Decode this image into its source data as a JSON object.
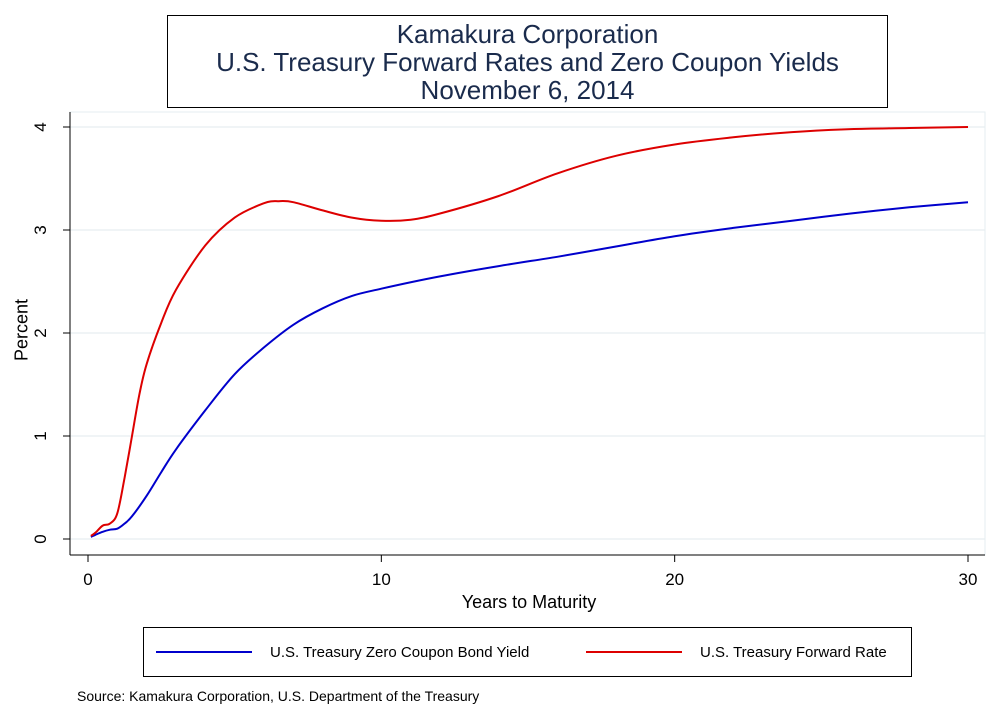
{
  "title": {
    "line1": "Kamakura Corporation",
    "line2": "U.S. Treasury Forward Rates and Zero Coupon Yields",
    "line3": "November 6, 2014"
  },
  "source_note": "Source: Kamakura Corporation, U.S. Department of the Treasury",
  "colors": {
    "zero_yield": "#0000cc",
    "forward_rate": "#dd0000",
    "title_text": "#1a2b4c",
    "grid": "#e6eef0"
  },
  "chart_data": {
    "type": "line",
    "title": "Kamakura Corporation U.S. Treasury Forward Rates and Zero Coupon Yields November 6, 2014",
    "xlabel": "Years to Maturity",
    "ylabel": "Percent",
    "xlim": [
      0,
      30
    ],
    "ylim": [
      0,
      4
    ],
    "xticks": [
      0,
      10,
      20,
      30
    ],
    "yticks": [
      0,
      1,
      2,
      3,
      4
    ],
    "grid": true,
    "legend_position": "bottom",
    "series": [
      {
        "name": "U.S. Treasury Zero Coupon Bond Yield",
        "color": "#0000cc",
        "x": [
          0.1,
          0.25,
          0.5,
          0.75,
          1,
          1.25,
          1.5,
          2,
          2.5,
          3,
          4,
          5,
          6,
          7,
          8,
          9,
          10,
          12,
          14,
          16,
          18,
          20,
          22,
          24,
          26,
          28,
          30
        ],
        "y": [
          0.02,
          0.04,
          0.07,
          0.09,
          0.1,
          0.15,
          0.22,
          0.42,
          0.65,
          0.87,
          1.25,
          1.6,
          1.86,
          2.08,
          2.24,
          2.36,
          2.43,
          2.55,
          2.65,
          2.74,
          2.84,
          2.94,
          3.02,
          3.09,
          3.16,
          3.22,
          3.27
        ]
      },
      {
        "name": "U.S. Treasury Forward Rate",
        "color": "#dd0000",
        "x": [
          0.1,
          0.25,
          0.5,
          0.75,
          1,
          1.25,
          1.5,
          1.75,
          2,
          2.5,
          3,
          4,
          5,
          6,
          6.5,
          7,
          8,
          9,
          10,
          11,
          12,
          14,
          16,
          18,
          20,
          22,
          24,
          26,
          28,
          30
        ],
        "y": [
          0.03,
          0.06,
          0.13,
          0.15,
          0.25,
          0.6,
          1.0,
          1.4,
          1.7,
          2.1,
          2.42,
          2.85,
          3.12,
          3.26,
          3.28,
          3.27,
          3.19,
          3.12,
          3.09,
          3.1,
          3.16,
          3.33,
          3.55,
          3.72,
          3.83,
          3.9,
          3.95,
          3.98,
          3.99,
          4.0
        ]
      }
    ]
  }
}
